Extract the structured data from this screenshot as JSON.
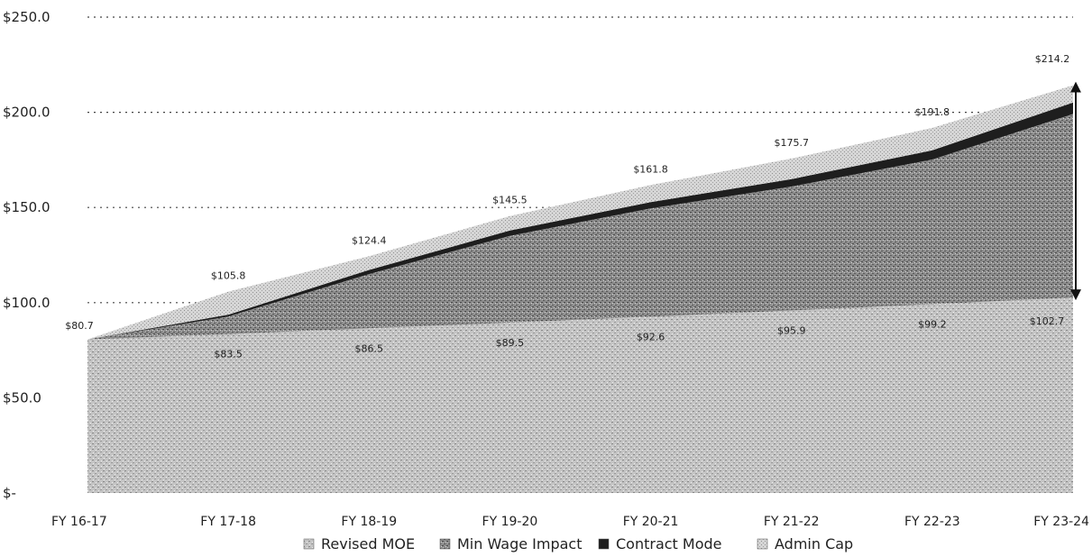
{
  "chart_data": {
    "type": "area",
    "stacked": true,
    "categories": [
      "FY 16-17",
      "FY 17-18",
      "FY 18-19",
      "FY 19-20",
      "FY 20-21",
      "FY 21-22",
      "FY 22-23",
      "FY 23-24"
    ],
    "y_tick_labels": [
      "$-",
      "$50.0",
      "$100.0",
      "$150.0",
      "$200.0",
      "$250.0"
    ],
    "y_tick_values": [
      0,
      50,
      100,
      150,
      200,
      250
    ],
    "ylim": [
      0,
      250
    ],
    "grid": "dotted horizontal",
    "legend_position": "bottom",
    "series": [
      {
        "name": "Revised MOE",
        "values": [
          80.7,
          83.5,
          86.5,
          89.5,
          92.6,
          95.9,
          99.2,
          102.7
        ],
        "color": "#bdbdbd"
      },
      {
        "name": "Min Wage Impact",
        "values": [
          0,
          9.2,
          28.5,
          45.6,
          56.9,
          65.1,
          76.0,
          96.4
        ],
        "color": "#7f7f7f"
      },
      {
        "name": "Contract Mode",
        "values": [
          0,
          1.0,
          2.2,
          2.8,
          3.3,
          3.9,
          4.8,
          6.0
        ],
        "color": "#262626"
      },
      {
        "name": "Admin Cap",
        "values": [
          0,
          12.1,
          7.2,
          7.6,
          9.0,
          10.8,
          11.8,
          9.1
        ],
        "color": "#cfcfcf"
      }
    ],
    "data_labels_top": [
      "$80.7",
      "$105.8",
      "$124.4",
      "$145.5",
      "$161.8",
      "$175.7",
      "$191.8",
      "$214.2"
    ],
    "data_labels_bottom": [
      "",
      "$83.5",
      "$86.5",
      "$89.5",
      "$92.6",
      "$95.9",
      "$99.2",
      "$102.7"
    ],
    "top_totals": [
      80.7,
      105.8,
      124.4,
      145.5,
      161.8,
      175.7,
      191.8,
      214.2
    ],
    "annotation": "double-headed vertical arrow at FY 23-24 spanning from $102.7 to $214.2"
  }
}
